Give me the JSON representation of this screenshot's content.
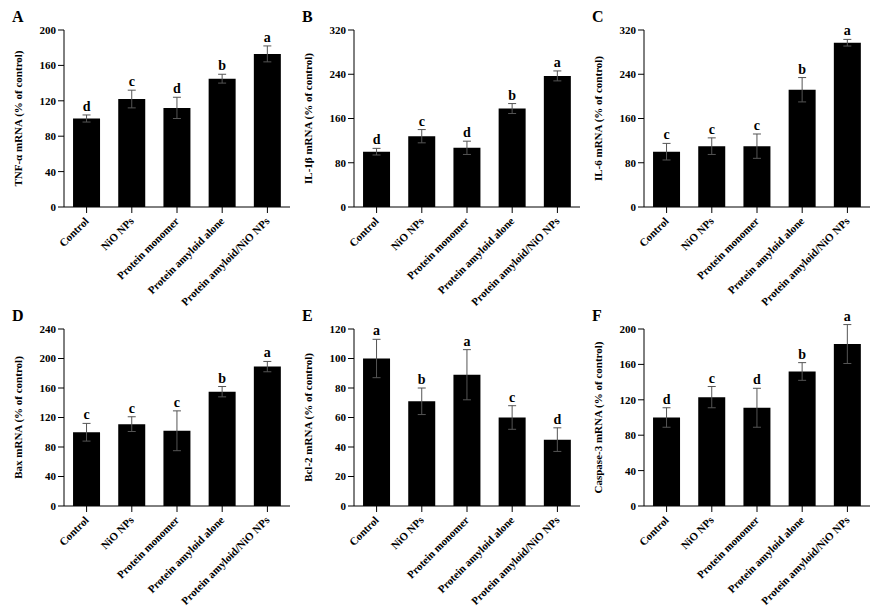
{
  "chart_data": [
    {
      "type": "bar",
      "title": "A",
      "ylabel": "TNF-α mRNA (% of control)",
      "categories": [
        "Control",
        "NiO NPs",
        "Protein monomer",
        "Protein amyloid alone",
        "Protein amyloid/NiO NPs"
      ],
      "values": [
        100,
        122,
        112,
        145,
        173
      ],
      "errors": [
        4,
        10,
        12,
        5,
        9
      ],
      "annotations": [
        "d",
        "c",
        "d",
        "b",
        "a"
      ],
      "color": "#000000",
      "ylim": [
        0,
        200
      ],
      "yticks": [
        0,
        40,
        80,
        120,
        160,
        200
      ]
    },
    {
      "type": "bar",
      "title": "B",
      "ylabel": "IL-1β mRNA (% of control)",
      "categories": [
        "Control",
        "NiO NPs",
        "Protein monomer",
        "Protein amyloid alone",
        "Protein amyloid/NiO NPs"
      ],
      "values": [
        100,
        128,
        107,
        178,
        237
      ],
      "errors": [
        6,
        12,
        12,
        9,
        9
      ],
      "annotations": [
        "d",
        "c",
        "d",
        "b",
        "a"
      ],
      "color": "#000000",
      "ylim": [
        0,
        320
      ],
      "yticks": [
        0,
        80,
        160,
        240,
        320
      ]
    },
    {
      "type": "bar",
      "title": "C",
      "ylabel": "IL-6 mRNA (% of control)",
      "categories": [
        "Control",
        "NiO NPs",
        "Protein monomer",
        "Protein amyloid alone",
        "Protein amyloid/NiO NPs"
      ],
      "values": [
        100,
        110,
        110,
        212,
        297
      ],
      "errors": [
        15,
        15,
        22,
        22,
        6
      ],
      "annotations": [
        "c",
        "c",
        "c",
        "b",
        "a"
      ],
      "color": "#000000",
      "ylim": [
        0,
        320
      ],
      "yticks": [
        0,
        80,
        160,
        240,
        320
      ]
    },
    {
      "type": "bar",
      "title": "D",
      "ylabel": "Bax mRNA (% of control)",
      "categories": [
        "Control",
        "NiO NPs",
        "Protein monomer",
        "Protein amyloid alone",
        "Protein amyloid/NiO NPs"
      ],
      "values": [
        100,
        111,
        102,
        155,
        189
      ],
      "errors": [
        12,
        10,
        27,
        7,
        7
      ],
      "annotations": [
        "c",
        "c",
        "c",
        "b",
        "a"
      ],
      "color": "#000000",
      "ylim": [
        0,
        240
      ],
      "yticks": [
        0,
        40,
        80,
        120,
        160,
        200,
        240
      ]
    },
    {
      "type": "bar",
      "title": "E",
      "ylabel": "Bcl-2 mRNA (% of control)",
      "categories": [
        "Control",
        "NiO NPs",
        "Protein monomer",
        "Protein amyloid alone",
        "Protein amyloid/NiO NPs"
      ],
      "values": [
        100,
        71,
        89,
        60,
        45
      ],
      "errors": [
        13,
        9,
        17,
        8,
        8
      ],
      "annotations": [
        "a",
        "b",
        "a",
        "c",
        "d"
      ],
      "color": "#000000",
      "ylim": [
        0,
        120
      ],
      "yticks": [
        0,
        20,
        40,
        60,
        80,
        100,
        120
      ]
    },
    {
      "type": "bar",
      "title": "F",
      "ylabel": "Caspase-3 mRNA (% of control)",
      "categories": [
        "Control",
        "NiO NPs",
        "Protein monomer",
        "Protein amyloid alone",
        "Protein amyloid/NiO NPs"
      ],
      "values": [
        100,
        123,
        111,
        152,
        183
      ],
      "errors": [
        11,
        12,
        22,
        10,
        22
      ],
      "annotations": [
        "d",
        "c",
        "d",
        "b",
        "a"
      ],
      "color": "#000000",
      "ylim": [
        0,
        200
      ],
      "yticks": [
        0,
        40,
        80,
        120,
        160,
        200
      ]
    }
  ]
}
